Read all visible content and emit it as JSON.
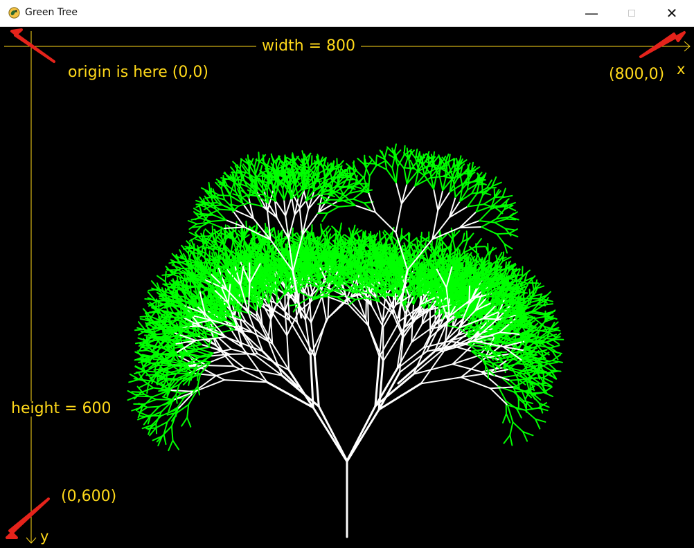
{
  "window": {
    "title": "Green Tree",
    "minimize": "—",
    "close": "✕",
    "icon": "pygame-snake-icon"
  },
  "annotations": {
    "width": "width = 800",
    "origin": "origin is here (0,0)",
    "top_right": "(800,0)",
    "x": "x",
    "height": "height = 600",
    "bottom_left": "(0,600)",
    "y": "y"
  },
  "colors": {
    "background": "#000000",
    "axis": "#ffd91a",
    "trunk": "#ffffff",
    "leaves": "#00ff00",
    "arrow": "#e5231b"
  },
  "tree": {
    "depth": 9,
    "branch_factor": 3,
    "leaf_color": "#00ff00",
    "wood_color": "#ffffff"
  }
}
